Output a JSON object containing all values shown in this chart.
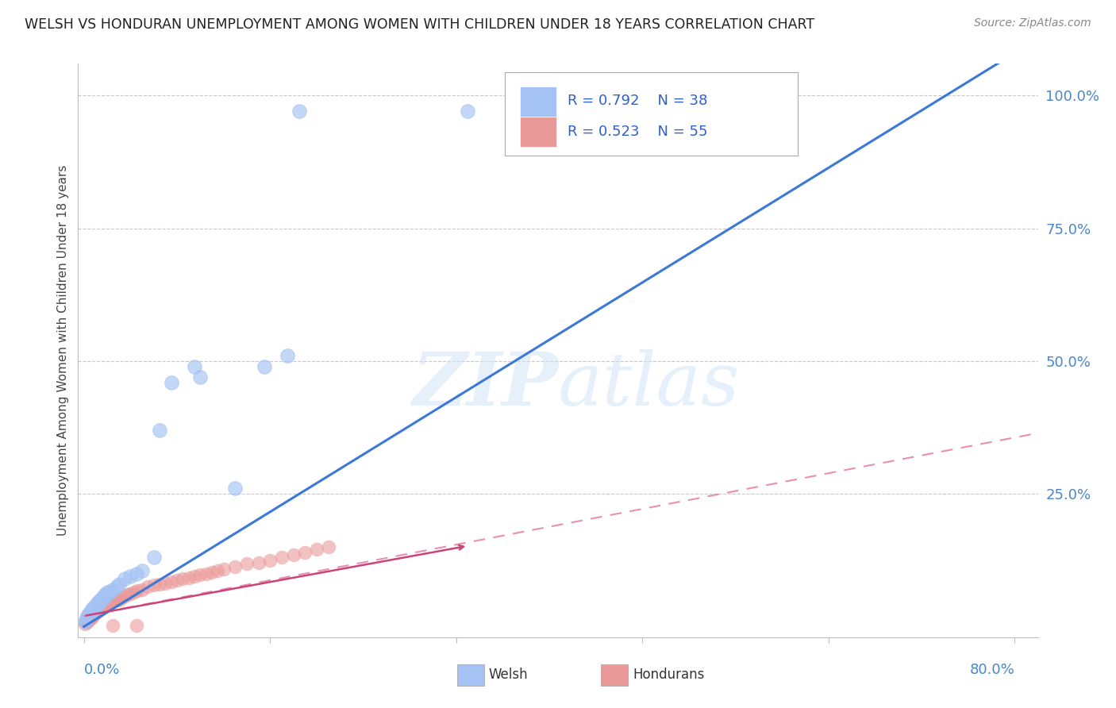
{
  "title": "WELSH VS HONDURAN UNEMPLOYMENT AMONG WOMEN WITH CHILDREN UNDER 18 YEARS CORRELATION CHART",
  "source": "Source: ZipAtlas.com",
  "ylabel": "Unemployment Among Women with Children Under 18 years",
  "ytick_labels": [
    "100.0%",
    "75.0%",
    "50.0%",
    "25.0%"
  ],
  "ytick_values": [
    1.0,
    0.75,
    0.5,
    0.25
  ],
  "xtick_values": [
    0.0,
    0.16,
    0.32,
    0.48,
    0.64,
    0.8
  ],
  "xlim": [
    -0.005,
    0.82
  ],
  "ylim": [
    -0.02,
    1.06
  ],
  "watermark_zip": "ZIP",
  "watermark_atlas": "atlas",
  "welsh_color": "#a4c2f4",
  "honduran_color": "#ea9999",
  "welsh_line_color": "#3c78d8",
  "honduran_line_solid_color": "#cc4477",
  "honduran_line_dash_color": "#e06090",
  "welsh_R": 0.792,
  "welsh_N": 38,
  "honduran_R": 0.523,
  "honduran_N": 55,
  "welsh_slope": 1.35,
  "welsh_intercept": 0.0,
  "honduran_slope_solid": 0.4,
  "honduran_intercept_solid": 0.02,
  "honduran_slope_dash": 0.42,
  "honduran_intercept_dash": 0.02,
  "welsh_scatter_x": [
    0.001,
    0.002,
    0.003,
    0.004,
    0.005,
    0.006,
    0.007,
    0.008,
    0.009,
    0.01,
    0.011,
    0.012,
    0.013,
    0.014,
    0.015,
    0.016,
    0.017,
    0.018,
    0.019,
    0.02,
    0.022,
    0.025,
    0.028,
    0.03,
    0.035,
    0.04,
    0.045,
    0.05,
    0.06,
    0.065,
    0.075,
    0.095,
    0.1,
    0.13,
    0.155,
    0.175,
    0.185,
    0.33
  ],
  "welsh_scatter_y": [
    0.01,
    0.015,
    0.02,
    0.025,
    0.025,
    0.03,
    0.03,
    0.035,
    0.035,
    0.04,
    0.04,
    0.045,
    0.045,
    0.05,
    0.05,
    0.055,
    0.055,
    0.06,
    0.06,
    0.065,
    0.065,
    0.07,
    0.075,
    0.08,
    0.09,
    0.095,
    0.1,
    0.105,
    0.13,
    0.37,
    0.46,
    0.49,
    0.47,
    0.26,
    0.49,
    0.51,
    0.97,
    0.97
  ],
  "honduran_scatter_x": [
    0.001,
    0.002,
    0.003,
    0.004,
    0.005,
    0.006,
    0.007,
    0.008,
    0.009,
    0.01,
    0.011,
    0.012,
    0.013,
    0.015,
    0.016,
    0.017,
    0.018,
    0.02,
    0.022,
    0.024,
    0.026,
    0.028,
    0.03,
    0.032,
    0.035,
    0.038,
    0.04,
    0.043,
    0.046,
    0.05,
    0.055,
    0.06,
    0.065,
    0.07,
    0.075,
    0.08,
    0.085,
    0.09,
    0.095,
    0.1,
    0.105,
    0.11,
    0.115,
    0.12,
    0.13,
    0.14,
    0.15,
    0.16,
    0.17,
    0.18,
    0.19,
    0.2,
    0.21,
    0.025,
    0.045
  ],
  "honduran_scatter_y": [
    0.005,
    0.008,
    0.01,
    0.012,
    0.015,
    0.015,
    0.02,
    0.02,
    0.025,
    0.025,
    0.028,
    0.03,
    0.03,
    0.035,
    0.035,
    0.038,
    0.04,
    0.04,
    0.045,
    0.045,
    0.048,
    0.05,
    0.05,
    0.055,
    0.058,
    0.06,
    0.062,
    0.065,
    0.068,
    0.07,
    0.075,
    0.078,
    0.08,
    0.082,
    0.085,
    0.088,
    0.09,
    0.092,
    0.095,
    0.098,
    0.1,
    0.102,
    0.105,
    0.108,
    0.112,
    0.118,
    0.12,
    0.125,
    0.13,
    0.135,
    0.14,
    0.145,
    0.15,
    0.002,
    0.002
  ],
  "background_color": "#ffffff",
  "grid_color": "#c8c8c8",
  "title_color": "#222222",
  "ylabel_color": "#444444",
  "tick_color": "#4a86c8",
  "legend_color": "#3060c8"
}
